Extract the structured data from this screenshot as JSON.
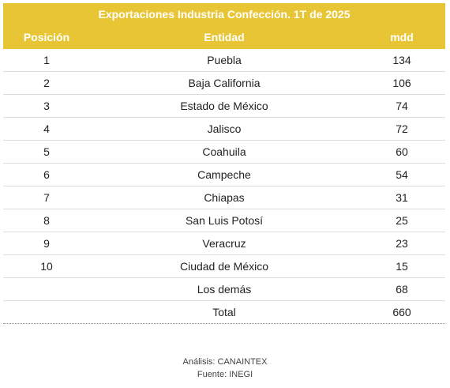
{
  "colors": {
    "accent": "#e8c534",
    "header_text": "#ffffff"
  },
  "chart_data": {
    "type": "table",
    "title": "Exportaciones Industria Confección. 1T de 2025",
    "columns": [
      "Posición",
      "Entidad",
      "mdd"
    ],
    "rows": [
      {
        "pos": "1",
        "entity": "Puebla",
        "mdd": "134"
      },
      {
        "pos": "2",
        "entity": "Baja California",
        "mdd": "106"
      },
      {
        "pos": "3",
        "entity": "Estado de México",
        "mdd": "74"
      },
      {
        "pos": "4",
        "entity": "Jalisco",
        "mdd": "72"
      },
      {
        "pos": "5",
        "entity": "Coahuila",
        "mdd": "60"
      },
      {
        "pos": "6",
        "entity": "Campeche",
        "mdd": "54"
      },
      {
        "pos": "7",
        "entity": "Chiapas",
        "mdd": "31"
      },
      {
        "pos": "8",
        "entity": "San Luis Potosí",
        "mdd": "25"
      },
      {
        "pos": "9",
        "entity": "Veracruz",
        "mdd": "23"
      },
      {
        "pos": "10",
        "entity": "Ciudad de México",
        "mdd": "15"
      },
      {
        "pos": "",
        "entity": "Los demás",
        "mdd": "68"
      },
      {
        "pos": "",
        "entity": "Total",
        "mdd": "660"
      }
    ]
  },
  "footer": {
    "analysis": "Análisis: CANAINTEX",
    "source": "Fuente: INEGI"
  }
}
